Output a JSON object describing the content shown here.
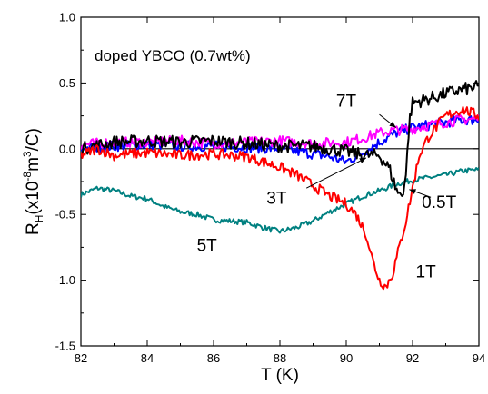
{
  "chart_data": {
    "type": "line",
    "title": "doped YBCO (0.7wt%)",
    "xlabel": "T (K)",
    "ylabel": {
      "base": "R",
      "sub": "H",
      "pre": "(x10",
      "sup1": "-8",
      "mid": "m",
      "sup2": "3",
      "post": "/C)"
    },
    "xlim": [
      82,
      94
    ],
    "ylim": [
      -1.5,
      1.0
    ],
    "xticks": [
      82,
      84,
      86,
      88,
      90,
      92,
      94
    ],
    "xtick_labels": [
      "82",
      "84",
      "86",
      "88",
      "90",
      "92",
      "94"
    ],
    "yticks": [
      -1.5,
      -1.0,
      -0.5,
      0.0,
      0.5,
      1.0
    ],
    "ytick_labels": [
      "-1.5",
      "-1.0",
      "-0.5",
      "0.0",
      "0.5",
      "1.0"
    ],
    "grid": false,
    "zero_line": true,
    "series": [
      {
        "name": "5T",
        "color": "#008080",
        "x": [
          82.0,
          82.5,
          83.0,
          83.5,
          84.0,
          84.5,
          85.0,
          85.5,
          86.0,
          86.5,
          87.0,
          87.5,
          88.0,
          88.5,
          89.0,
          89.5,
          90.0,
          90.5,
          91.0,
          91.5,
          92.0,
          92.5,
          93.0,
          93.5,
          94.0
        ],
        "y": [
          -0.35,
          -0.3,
          -0.32,
          -0.36,
          -0.38,
          -0.44,
          -0.48,
          -0.5,
          -0.54,
          -0.55,
          -0.56,
          -0.6,
          -0.63,
          -0.6,
          -0.55,
          -0.48,
          -0.42,
          -0.36,
          -0.32,
          -0.27,
          -0.24,
          -0.22,
          -0.2,
          -0.17,
          -0.16
        ],
        "noise": 0.02
      },
      {
        "name": "3T",
        "color": "#0000ff",
        "x": [
          82.0,
          83.0,
          84.0,
          85.0,
          86.0,
          87.0,
          88.0,
          88.5,
          89.0,
          89.5,
          90.0,
          90.5,
          91.0,
          91.5,
          92.0,
          92.5,
          93.0,
          93.5,
          94.0
        ],
        "y": [
          0.0,
          0.02,
          0.03,
          0.02,
          0.02,
          0.01,
          0.0,
          -0.02,
          -0.04,
          -0.06,
          -0.1,
          -0.03,
          0.05,
          0.12,
          0.16,
          0.18,
          0.2,
          0.22,
          0.22
        ],
        "noise": 0.04
      },
      {
        "name": "7T",
        "color": "#ff00ff",
        "x": [
          82.0,
          83.0,
          84.0,
          85.0,
          86.0,
          87.0,
          88.0,
          89.0,
          90.0,
          90.5,
          91.0,
          91.5,
          92.0,
          92.5,
          93.0,
          93.5,
          94.0
        ],
        "y": [
          0.03,
          0.05,
          0.05,
          0.06,
          0.04,
          0.05,
          0.06,
          0.04,
          0.05,
          0.08,
          0.12,
          0.14,
          0.15,
          0.18,
          0.2,
          0.22,
          0.23
        ],
        "noise": 0.04
      },
      {
        "name": "0.5T",
        "color": "#000000",
        "x": [
          82.0,
          83.0,
          84.0,
          85.0,
          86.0,
          87.0,
          88.0,
          89.0,
          90.0,
          90.5,
          91.0,
          91.3,
          91.5,
          91.6,
          91.7,
          91.8,
          91.9,
          92.0,
          92.5,
          93.0,
          93.5,
          94.0
        ],
        "y": [
          0.0,
          0.05,
          0.06,
          0.05,
          0.06,
          0.04,
          0.02,
          0.02,
          -0.02,
          -0.05,
          -0.05,
          -0.15,
          -0.3,
          -0.35,
          -0.34,
          -0.2,
          0.2,
          0.35,
          0.38,
          0.42,
          0.45,
          0.47
        ],
        "noise": 0.05
      },
      {
        "name": "1T",
        "color": "#ff0000",
        "x": [
          82.0,
          82.5,
          83.0,
          84.0,
          85.0,
          86.0,
          87.0,
          87.5,
          88.0,
          88.5,
          89.0,
          89.5,
          90.0,
          90.3,
          90.6,
          90.8,
          91.0,
          91.2,
          91.4,
          91.6,
          91.8,
          92.0,
          92.2,
          92.5,
          93.0,
          93.5,
          94.0
        ],
        "y": [
          -0.05,
          0.0,
          -0.05,
          -0.03,
          -0.05,
          -0.04,
          -0.06,
          -0.1,
          -0.14,
          -0.2,
          -0.28,
          -0.36,
          -0.42,
          -0.5,
          -0.65,
          -0.85,
          -1.0,
          -1.05,
          -0.95,
          -0.75,
          -0.55,
          -0.3,
          -0.05,
          0.1,
          0.25,
          0.3,
          0.25
        ],
        "noise": 0.04
      }
    ],
    "annotations": [
      {
        "text": "7T",
        "x": 90.0,
        "y": 0.32
      },
      {
        "text": "3T",
        "x": 87.9,
        "y": -0.42
      },
      {
        "text": "0.5T",
        "x": 92.8,
        "y": -0.45
      },
      {
        "text": "5T",
        "x": 85.8,
        "y": -0.78
      },
      {
        "text": "1T",
        "x": 92.4,
        "y": -0.98
      }
    ],
    "arrows": [
      {
        "from": [
          91.0,
          0.26
        ],
        "to": [
          91.5,
          0.16
        ]
      },
      {
        "from": [
          88.8,
          -0.3
        ],
        "to": [
          90.6,
          -0.07
        ]
      },
      {
        "from": [
          92.55,
          -0.37
        ],
        "to": [
          91.9,
          -0.31
        ]
      }
    ]
  }
}
